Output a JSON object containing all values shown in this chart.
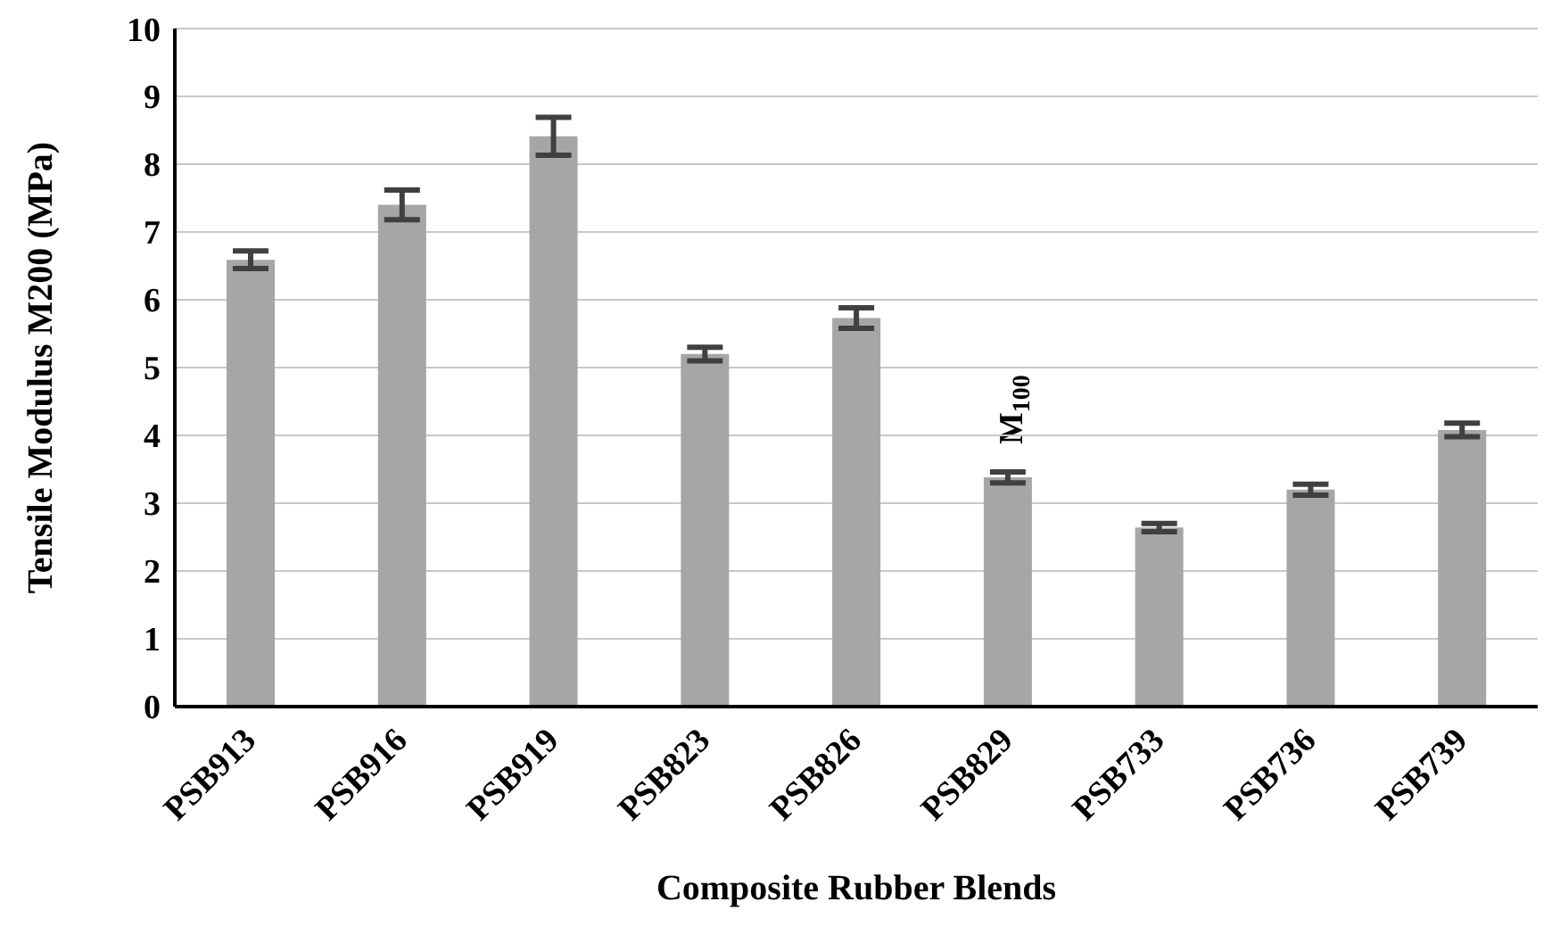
{
  "chart_data": {
    "type": "bar",
    "xlabel": "Composite Rubber Blends",
    "ylabel": "Tensile Modulus  M200 (MPa)",
    "categories": [
      "PSB913",
      "PSB916",
      "PSB919",
      "PSB823",
      "PSB826",
      "PSB829",
      "PSB733",
      "PSB736",
      "PSB739"
    ],
    "values": [
      6.59,
      7.4,
      8.41,
      5.2,
      5.73,
      3.38,
      2.64,
      3.2,
      4.08
    ],
    "errors": [
      0.13,
      0.22,
      0.28,
      0.1,
      0.15,
      0.08,
      0.06,
      0.08,
      0.1
    ],
    "color": "#a6a6a6",
    "ylim": [
      0,
      10
    ],
    "yticks": [
      0,
      1,
      2,
      3,
      4,
      5,
      6,
      7,
      8,
      9,
      10
    ],
    "grid": "y",
    "annotations": [
      "M$_{100}$"
    ]
  }
}
